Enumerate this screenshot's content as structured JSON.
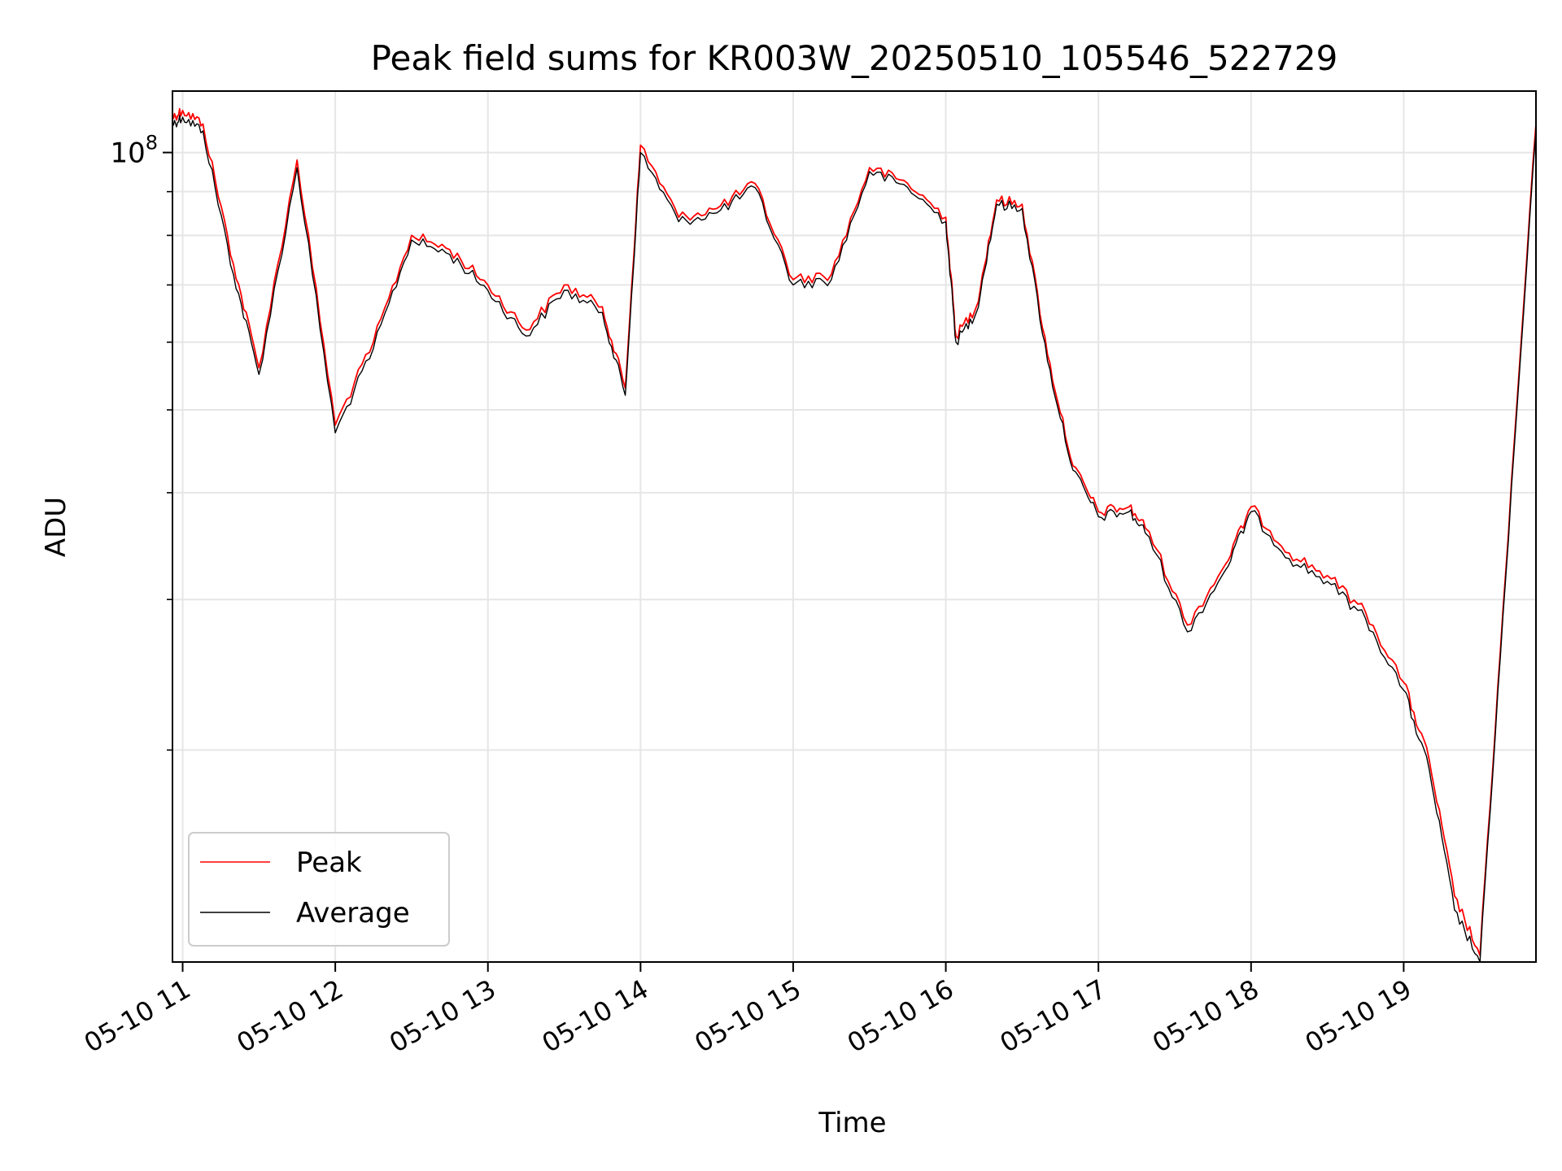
{
  "chart_data": {
    "type": "line",
    "title": "Peak field sums for KR003W_20250510_105546_522729",
    "xlabel": "Time",
    "ylabel": "ADU",
    "yscale": "log",
    "xlim": [
      "05-10 10:56",
      "05-10 19:52"
    ],
    "ylim": [
      11300000,
      118000000
    ],
    "x_ticks": [
      "05-10 11",
      "05-10 12",
      "05-10 13",
      "05-10 14",
      "05-10 15",
      "05-10 16",
      "05-10 17",
      "05-10 18",
      "05-10 19"
    ],
    "y_ticks": [
      {
        "value": 100000000,
        "base": "10",
        "exp": "8"
      }
    ],
    "grid": true,
    "legend": {
      "position": "lower-left",
      "entries": [
        {
          "label": "Peak",
          "color": "#ff0000"
        },
        {
          "label": "Average",
          "color": "#000000"
        }
      ]
    },
    "series": [
      {
        "name": "Peak",
        "color": "#ff0000",
        "x": [
          "05-10 10:56",
          "05-10 11:00",
          "05-10 11:08",
          "05-10 11:20",
          "05-10 11:30",
          "05-10 11:45",
          "05-10 12:00",
          "05-10 12:15",
          "05-10 12:30",
          "05-10 12:45",
          "05-10 13:00",
          "05-10 13:15",
          "05-10 13:30",
          "05-10 13:45",
          "05-10 13:54",
          "05-10 14:00",
          "05-10 14:15",
          "05-10 14:30",
          "05-10 14:45",
          "05-10 15:00",
          "05-10 15:15",
          "05-10 15:30",
          "05-10 15:45",
          "05-10 16:00",
          "05-10 16:04",
          "05-10 16:12",
          "05-10 16:20",
          "05-10 16:30",
          "05-10 16:40",
          "05-10 16:50",
          "05-10 17:00",
          "05-10 17:12",
          "05-10 17:20",
          "05-10 17:35",
          "05-10 17:50",
          "05-10 18:00",
          "05-10 18:15",
          "05-10 18:30",
          "05-10 18:45",
          "05-10 19:00",
          "05-10 19:10",
          "05-10 19:20",
          "05-10 19:30",
          "05-10 19:40",
          "05-10 19:52"
        ],
        "values": [
          110000000,
          112000000,
          108000000,
          74000000,
          56000000,
          98000000,
          48000000,
          60000000,
          80000000,
          77000000,
          70000000,
          62000000,
          70000000,
          66000000,
          53000000,
          102000000,
          84000000,
          86000000,
          92000000,
          71000000,
          72000000,
          96000000,
          92000000,
          84000000,
          61000000,
          66000000,
          88000000,
          87000000,
          58000000,
          43000000,
          38000000,
          38500000,
          36000000,
          28000000,
          33000000,
          38500000,
          34000000,
          32000000,
          29000000,
          24000000,
          19500000,
          13500000,
          11500000,
          32000000,
          108000000
        ]
      },
      {
        "name": "Average",
        "color": "#000000",
        "x": [
          "05-10 10:56",
          "05-10 11:00",
          "05-10 11:08",
          "05-10 11:20",
          "05-10 11:30",
          "05-10 11:45",
          "05-10 12:00",
          "05-10 12:15",
          "05-10 12:30",
          "05-10 12:45",
          "05-10 13:00",
          "05-10 13:15",
          "05-10 13:30",
          "05-10 13:45",
          "05-10 13:54",
          "05-10 14:00",
          "05-10 14:15",
          "05-10 14:30",
          "05-10 14:45",
          "05-10 15:00",
          "05-10 15:15",
          "05-10 15:30",
          "05-10 15:45",
          "05-10 16:00",
          "05-10 16:04",
          "05-10 16:12",
          "05-10 16:20",
          "05-10 16:30",
          "05-10 16:40",
          "05-10 16:50",
          "05-10 17:00",
          "05-10 17:12",
          "05-10 17:20",
          "05-10 17:35",
          "05-10 17:50",
          "05-10 18:00",
          "05-10 18:15",
          "05-10 18:30",
          "05-10 18:45",
          "05-10 19:00",
          "05-10 19:10",
          "05-10 19:20",
          "05-10 19:30",
          "05-10 19:40",
          "05-10 19:52"
        ],
        "values": [
          108000000,
          110000000,
          106000000,
          72000000,
          55000000,
          96000000,
          47000000,
          59000000,
          79000000,
          76000000,
          69000000,
          61000000,
          69000000,
          65000000,
          52000000,
          100000000,
          83000000,
          85000000,
          91000000,
          70000000,
          71000000,
          95000000,
          91000000,
          83000000,
          60000000,
          65000000,
          87000000,
          86000000,
          57000000,
          42500000,
          37500000,
          38000000,
          35500000,
          27500000,
          32500000,
          38000000,
          33500000,
          31500000,
          28500000,
          23500000,
          19000000,
          13000000,
          11300000,
          31500000,
          106000000
        ]
      }
    ]
  }
}
